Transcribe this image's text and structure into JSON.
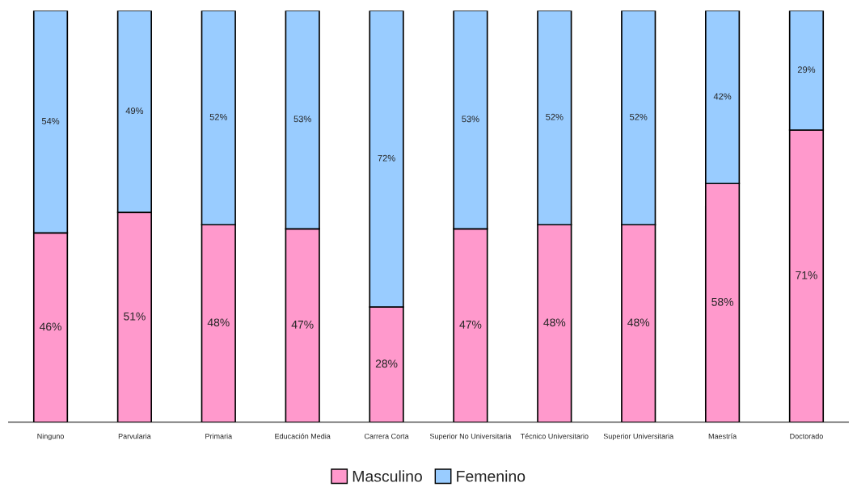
{
  "chart_data": {
    "type": "bar",
    "stacked": true,
    "legend": "bottom",
    "categories": [
      "Ninguno",
      "Parvularia",
      "Primaria",
      "Educación Media",
      "Carrera Corta",
      "Superior No Universitaria",
      "Técnico Universitario",
      "Superior Universitaria",
      "Maestría",
      "Doctorado"
    ],
    "series": [
      {
        "name": "Masculino",
        "color": "#ff99cc",
        "values": [
          46,
          51,
          48,
          47,
          28,
          47,
          48,
          48,
          58,
          71
        ],
        "value_labels": [
          "46%",
          "51%",
          "48%",
          "47%",
          "28%",
          "47%",
          "48%",
          "48%",
          "58%",
          "71%"
        ]
      },
      {
        "name": "Femenino",
        "color": "#99ccff",
        "values": [
          54,
          49,
          52,
          53,
          72,
          53,
          52,
          52,
          42,
          29
        ],
        "value_labels": [
          "54%",
          "49%",
          "52%",
          "53%",
          "72%",
          "53%",
          "52%",
          "52%",
          "42%",
          "29%"
        ]
      }
    ]
  }
}
